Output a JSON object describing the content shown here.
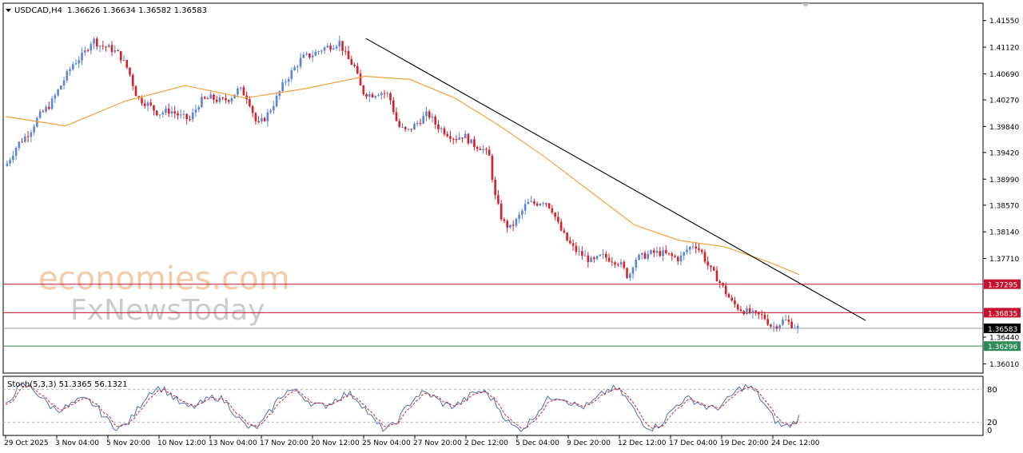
{
  "header": {
    "symbol": "USDCAD,H4",
    "ohlc": "1.36626 1.36634 1.36582 1.36583"
  },
  "watermark": {
    "line1": "economies.com",
    "line2": "FxNewsToday"
  },
  "stoch": {
    "label": "Stoch(5,3,3) 51.3365 56.1321",
    "levels": [
      "80",
      "20",
      "0"
    ],
    "upper": 80,
    "lower": 20,
    "k": 51.3365,
    "d": 56.1321
  },
  "colors": {
    "bull": "#5b86d6",
    "bear": "#d6202a",
    "ma": "#f2a23a",
    "trend": "#000000",
    "resistance": "#c8102e",
    "current": "#000000",
    "support": "#2e8b57",
    "grid": "#c8c8c8"
  },
  "chart_data": {
    "type": "candlestick",
    "symbol": "USDCAD",
    "timeframe": "H4",
    "ylim": [
      1.3586,
      1.4183
    ],
    "y_ticks": [
      "1.41550",
      "1.41120",
      "1.40690",
      "1.40270",
      "1.39840",
      "1.39420",
      "1.38990",
      "1.38570",
      "1.38140",
      "1.37710",
      "1.36440",
      "1.36010"
    ],
    "x_ticks": [
      "29 Oct 2025",
      "3 Nov 04:00",
      "5 Nov 20:00",
      "10 Nov 12:00",
      "13 Nov 04:00",
      "17 Nov 20:00",
      "20 Nov 12:00",
      "25 Nov 04:00",
      "27 Nov 20:00",
      "2 Dec 12:00",
      "5 Dec 04:00",
      "9 Dec 20:00",
      "12 Dec 12:00",
      "17 Dec 04:00",
      "19 Dec 20:00",
      "24 Dec 12:00"
    ],
    "levels": [
      {
        "name": "resistance-1",
        "value": 1.37295,
        "label": "1.37295"
      },
      {
        "name": "resistance-2",
        "value": 1.36835,
        "label": "1.36835"
      },
      {
        "name": "current",
        "value": 1.36583,
        "label": "1.36583"
      },
      {
        "name": "support",
        "value": 1.36296,
        "label": "1.36296"
      }
    ],
    "trendline": {
      "from": [
        "25 Nov 04:00",
        1.4126
      ],
      "to": [
        "26 Dec",
        1.3671
      ]
    },
    "close_path": [
      {
        "x": 0,
        "y": 1.392
      },
      {
        "x": 8,
        "y": 1.3955
      },
      {
        "x": 16,
        "y": 1.3975
      },
      {
        "x": 22,
        "y": 1.4
      },
      {
        "x": 30,
        "y": 1.402
      },
      {
        "x": 38,
        "y": 1.4055
      },
      {
        "x": 45,
        "y": 1.4085
      },
      {
        "x": 52,
        "y": 1.41
      },
      {
        "x": 58,
        "y": 1.4125
      },
      {
        "x": 63,
        "y": 1.4115
      },
      {
        "x": 70,
        "y": 1.411
      },
      {
        "x": 76,
        "y": 1.41
      },
      {
        "x": 82,
        "y": 1.4075
      },
      {
        "x": 88,
        "y": 1.403
      },
      {
        "x": 95,
        "y": 1.402
      },
      {
        "x": 102,
        "y": 1.4005
      },
      {
        "x": 110,
        "y": 1.401
      },
      {
        "x": 117,
        "y": 1.4
      },
      {
        "x": 123,
        "y": 1.3995
      },
      {
        "x": 130,
        "y": 1.4025
      },
      {
        "x": 137,
        "y": 1.403
      },
      {
        "x": 144,
        "y": 1.4025
      },
      {
        "x": 150,
        "y": 1.403
      },
      {
        "x": 156,
        "y": 1.4045
      },
      {
        "x": 162,
        "y": 1.403
      },
      {
        "x": 168,
        "y": 1.3985
      },
      {
        "x": 174,
        "y": 1.4
      },
      {
        "x": 180,
        "y": 1.4025
      },
      {
        "x": 186,
        "y": 1.4055
      },
      {
        "x": 192,
        "y": 1.4075
      },
      {
        "x": 198,
        "y": 1.4095
      },
      {
        "x": 205,
        "y": 1.41
      },
      {
        "x": 212,
        "y": 1.411
      },
      {
        "x": 218,
        "y": 1.4115
      },
      {
        "x": 223,
        "y": 1.412
      },
      {
        "x": 228,
        "y": 1.4095
      },
      {
        "x": 233,
        "y": 1.408
      },
      {
        "x": 238,
        "y": 1.404
      },
      {
        "x": 244,
        "y": 1.4035
      },
      {
        "x": 250,
        "y": 1.404
      },
      {
        "x": 256,
        "y": 1.4035
      },
      {
        "x": 262,
        "y": 1.3985
      },
      {
        "x": 268,
        "y": 1.3975
      },
      {
        "x": 275,
        "y": 1.399
      },
      {
        "x": 282,
        "y": 1.4005
      },
      {
        "x": 288,
        "y": 1.3985
      },
      {
        "x": 294,
        "y": 1.3975
      },
      {
        "x": 300,
        "y": 1.3965
      },
      {
        "x": 306,
        "y": 1.397
      },
      {
        "x": 312,
        "y": 1.3955
      },
      {
        "x": 318,
        "y": 1.395
      },
      {
        "x": 323,
        "y": 1.3935
      },
      {
        "x": 327,
        "y": 1.387
      },
      {
        "x": 332,
        "y": 1.383
      },
      {
        "x": 337,
        "y": 1.382
      },
      {
        "x": 342,
        "y": 1.3835
      },
      {
        "x": 348,
        "y": 1.386
      },
      {
        "x": 354,
        "y": 1.386
      },
      {
        "x": 360,
        "y": 1.3865
      },
      {
        "x": 365,
        "y": 1.385
      },
      {
        "x": 370,
        "y": 1.382
      },
      {
        "x": 375,
        "y": 1.38
      },
      {
        "x": 380,
        "y": 1.3785
      },
      {
        "x": 386,
        "y": 1.3775
      },
      {
        "x": 392,
        "y": 1.3765
      },
      {
        "x": 398,
        "y": 1.3775
      },
      {
        "x": 404,
        "y": 1.377
      },
      {
        "x": 410,
        "y": 1.3765
      },
      {
        "x": 416,
        "y": 1.374
      },
      {
        "x": 420,
        "y": 1.377
      },
      {
        "x": 426,
        "y": 1.3775
      },
      {
        "x": 432,
        "y": 1.378
      },
      {
        "x": 438,
        "y": 1.378
      },
      {
        "x": 444,
        "y": 1.3775
      },
      {
        "x": 450,
        "y": 1.377
      },
      {
        "x": 455,
        "y": 1.3785
      },
      {
        "x": 460,
        "y": 1.3795
      },
      {
        "x": 465,
        "y": 1.378
      },
      {
        "x": 470,
        "y": 1.3755
      },
      {
        "x": 475,
        "y": 1.374
      },
      {
        "x": 480,
        "y": 1.372
      },
      {
        "x": 485,
        "y": 1.37
      },
      {
        "x": 490,
        "y": 1.369
      },
      {
        "x": 495,
        "y": 1.3685
      },
      {
        "x": 500,
        "y": 1.368
      },
      {
        "x": 506,
        "y": 1.3678
      },
      {
        "x": 512,
        "y": 1.366
      },
      {
        "x": 516,
        "y": 1.3665
      },
      {
        "x": 520,
        "y": 1.3672
      },
      {
        "x": 526,
        "y": 1.3663
      },
      {
        "x": 530,
        "y": 1.3658
      }
    ],
    "ma_path": [
      {
        "x": 0,
        "y": 1.4
      },
      {
        "x": 40,
        "y": 1.3985
      },
      {
        "x": 80,
        "y": 1.4025
      },
      {
        "x": 120,
        "y": 1.405
      },
      {
        "x": 160,
        "y": 1.403
      },
      {
        "x": 200,
        "y": 1.4045
      },
      {
        "x": 240,
        "y": 1.4065
      },
      {
        "x": 270,
        "y": 1.406
      },
      {
        "x": 300,
        "y": 1.403
      },
      {
        "x": 330,
        "y": 1.3985
      },
      {
        "x": 360,
        "y": 1.3935
      },
      {
        "x": 390,
        "y": 1.388
      },
      {
        "x": 420,
        "y": 1.3825
      },
      {
        "x": 450,
        "y": 1.38
      },
      {
        "x": 480,
        "y": 1.379
      },
      {
        "x": 510,
        "y": 1.3765
      },
      {
        "x": 530,
        "y": 1.3745
      }
    ]
  }
}
